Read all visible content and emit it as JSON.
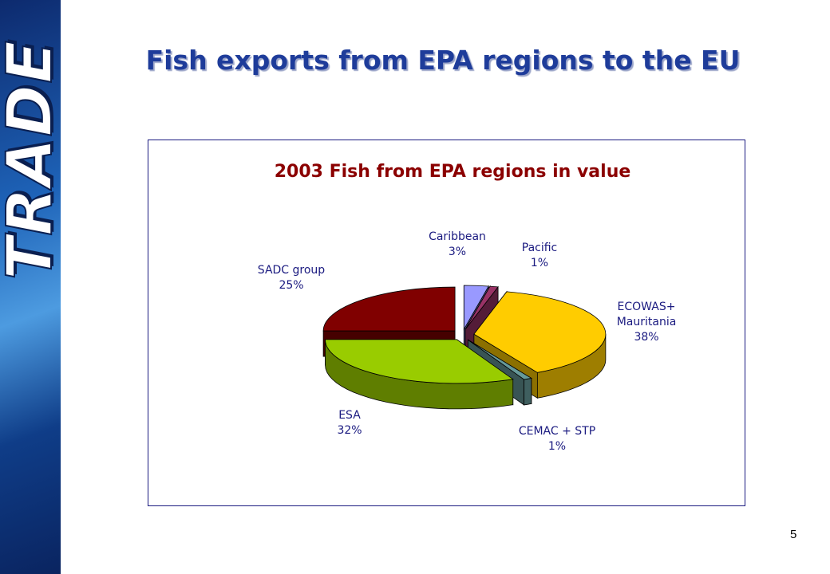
{
  "brand": "TRADE",
  "slide": {
    "title": "Fish exports from EPA regions to the EU",
    "page_number": "5"
  },
  "chart_data": {
    "type": "pie",
    "title": "2003 Fish from EPA regions in value",
    "categories": [
      "Caribbean",
      "Pacific",
      "ECOWAS+ Mauritania",
      "CEMAC + STP",
      "ESA",
      "SADC group"
    ],
    "values": [
      3,
      1,
      38,
      1,
      32,
      25
    ],
    "value_labels": [
      "3%",
      "1%",
      "38%",
      "1%",
      "32%",
      "25%"
    ],
    "colors": [
      "#9999ff",
      "#993366",
      "#ffcc00",
      "#669999",
      "#99cc00",
      "#800000"
    ]
  }
}
